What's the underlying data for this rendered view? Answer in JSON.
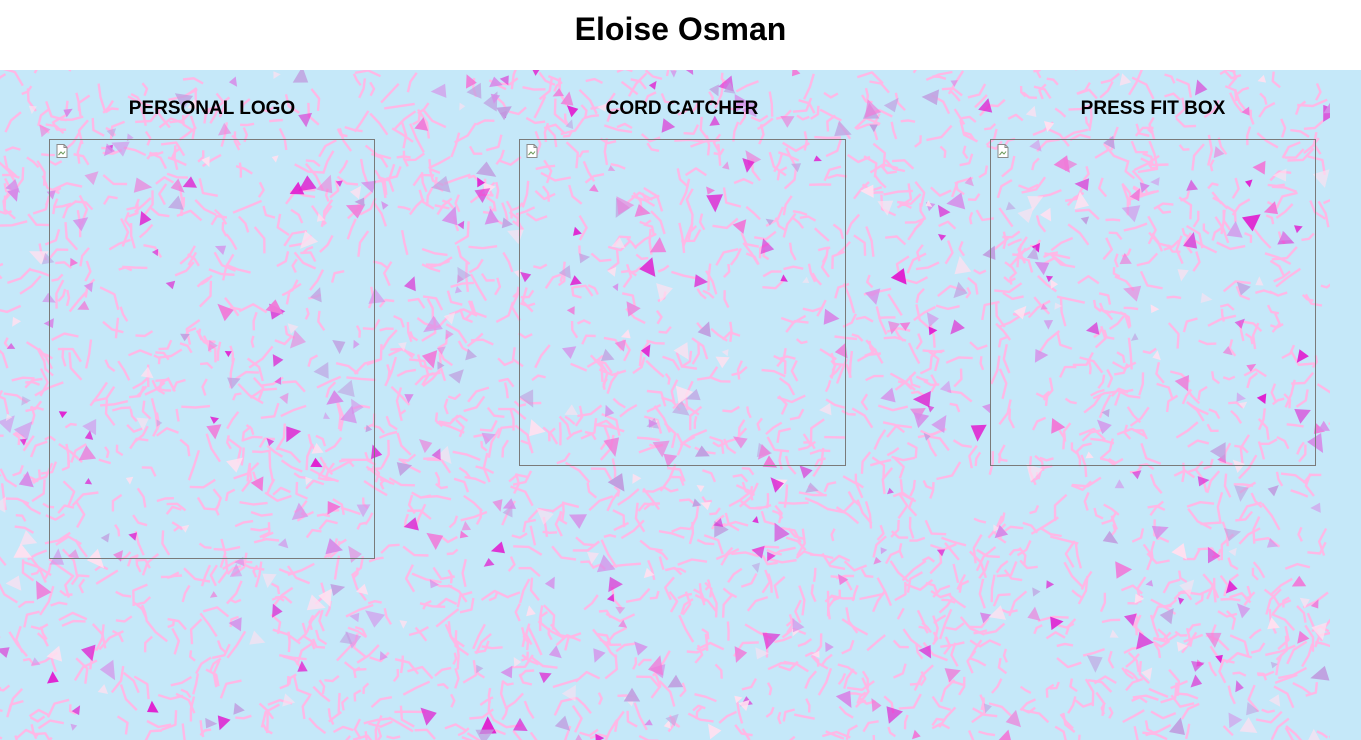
{
  "header": {
    "title": "Eloise Osman"
  },
  "projects": [
    {
      "title": "PERSONAL LOGO",
      "image_icon": "broken-image-icon"
    },
    {
      "title": "CORD CATCHER",
      "image_icon": "broken-image-icon"
    },
    {
      "title": "PRESS FIT BOX",
      "image_icon": "broken-image-icon"
    }
  ],
  "colors": {
    "background": "#c5e8f9",
    "confetti_line": "#ffb8e6",
    "confetti_accent": "#e020d0",
    "frame_border": "#7a7a7a"
  }
}
